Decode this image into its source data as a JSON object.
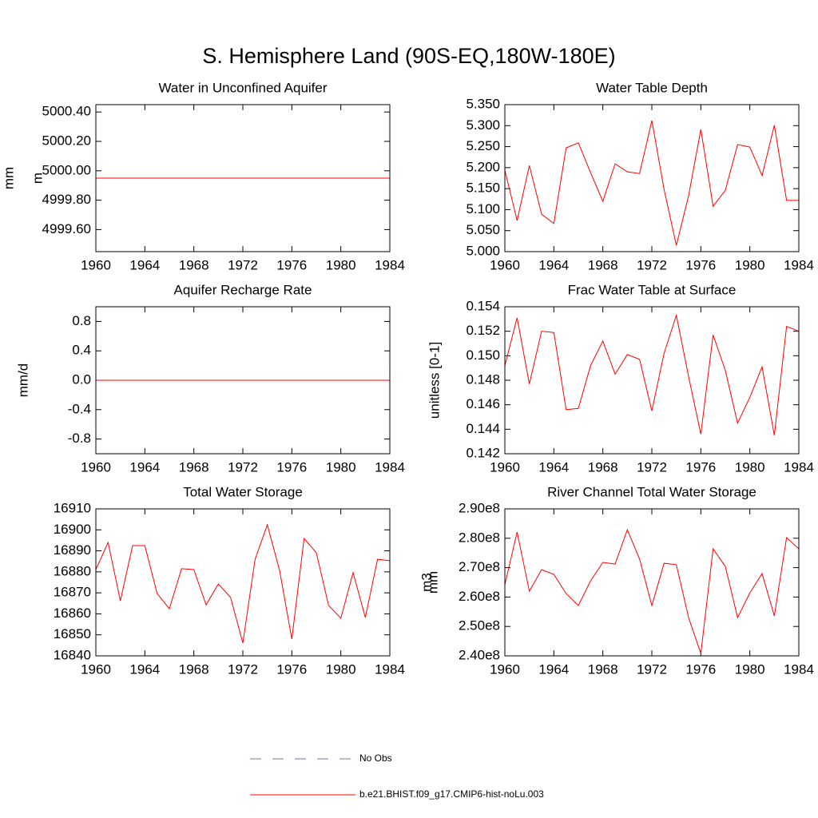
{
  "title": "S. Hemisphere Land (90S-EQ,180W-180E)",
  "legend": [
    {
      "name": "No Obs",
      "color": "#6b78b4",
      "dash": true
    },
    {
      "name": "b.e21.BHIST.f09_g17.CMIP6-hist-noLu.003",
      "color": "#ff0000",
      "dash": false
    }
  ],
  "chart_data": [
    {
      "type": "line",
      "title": "Water in Unconfined Aquifer",
      "ylabel": "mm",
      "color": "#ff0000",
      "x": [
        1960,
        1961,
        1962,
        1963,
        1964,
        1965,
        1966,
        1967,
        1968,
        1969,
        1970,
        1971,
        1972,
        1973,
        1974,
        1975,
        1976,
        1977,
        1978,
        1979,
        1980,
        1981,
        1982,
        1983,
        1984
      ],
      "values": [
        4999.95,
        4999.95,
        4999.95,
        4999.95,
        4999.95,
        4999.95,
        4999.95,
        4999.95,
        4999.95,
        4999.95,
        4999.95,
        4999.95,
        4999.95,
        4999.95,
        4999.95,
        4999.95,
        4999.95,
        4999.95,
        4999.95,
        4999.95,
        4999.95,
        4999.95,
        4999.95,
        4999.95,
        4999.95
      ],
      "xlim": [
        1960,
        1984
      ],
      "xticks": [
        1960,
        1964,
        1968,
        1972,
        1976,
        1980,
        1984
      ],
      "ylim": [
        4999.45,
        5000.45
      ],
      "yticks": [
        {
          "value": 4999.6,
          "label": "4999.60"
        },
        {
          "value": 4999.8,
          "label": "4999.80"
        },
        {
          "value": 5000,
          "label": "5000.00"
        },
        {
          "value": 5000.2,
          "label": "5000.20"
        },
        {
          "value": 5000.4,
          "label": "5000.40"
        }
      ]
    },
    {
      "type": "line",
      "title": "Water Table Depth",
      "ylabel": "m",
      "color": "#ff0000",
      "x": [
        1960,
        1961,
        1962,
        1963,
        1964,
        1965,
        1966,
        1967,
        1968,
        1969,
        1970,
        1971,
        1972,
        1973,
        1974,
        1975,
        1976,
        1977,
        1978,
        1979,
        1980,
        1981,
        1982,
        1983,
        1984
      ],
      "values": [
        5.194,
        5.074,
        5.205,
        5.089,
        5.067,
        5.247,
        5.259,
        5.188,
        5.12,
        5.209,
        5.19,
        5.186,
        5.312,
        5.148,
        5.015,
        5.133,
        5.291,
        5.108,
        5.146,
        5.255,
        5.249,
        5.181,
        5.301,
        5.122,
        5.122
      ],
      "xlim": [
        1960,
        1984
      ],
      "xticks": [
        1960,
        1964,
        1968,
        1972,
        1976,
        1980,
        1984
      ],
      "ylim": [
        5.0,
        5.35
      ],
      "yticks": [
        {
          "value": 5,
          "label": "5.000"
        },
        {
          "value": 5.05,
          "label": "5.050"
        },
        {
          "value": 5.1,
          "label": "5.100"
        },
        {
          "value": 5.15,
          "label": "5.150"
        },
        {
          "value": 5.2,
          "label": "5.200"
        },
        {
          "value": 5.25,
          "label": "5.250"
        },
        {
          "value": 5.3,
          "label": "5.300"
        },
        {
          "value": 5.35,
          "label": "5.350"
        }
      ]
    },
    {
      "type": "line",
      "title": "Aquifer Recharge Rate",
      "ylabel": "mm/d",
      "color": "#ff0000",
      "x": [
        1960,
        1961,
        1962,
        1963,
        1964,
        1965,
        1966,
        1967,
        1968,
        1969,
        1970,
        1971,
        1972,
        1973,
        1974,
        1975,
        1976,
        1977,
        1978,
        1979,
        1980,
        1981,
        1982,
        1983,
        1984
      ],
      "values": [
        0,
        0,
        0,
        0,
        0,
        0,
        0,
        0,
        0,
        0,
        0,
        0,
        0,
        0,
        0,
        0,
        0,
        0,
        0,
        0,
        0,
        0,
        0,
        0,
        0
      ],
      "xlim": [
        1960,
        1984
      ],
      "xticks": [
        1960,
        1964,
        1968,
        1972,
        1976,
        1980,
        1984
      ],
      "ylim": [
        -1.0,
        1.0
      ],
      "yticks": [
        -0.8,
        -0.4,
        {
          "value": 0,
          "label": "0.0"
        },
        0.4,
        0.8
      ]
    },
    {
      "type": "line",
      "title": "Frac Water Table at Surface",
      "ylabel": "unitless [0-1]",
      "color": "#ff0000",
      "x": [
        1960,
        1961,
        1962,
        1963,
        1964,
        1965,
        1966,
        1967,
        1968,
        1969,
        1970,
        1971,
        1972,
        1973,
        1974,
        1975,
        1976,
        1977,
        1978,
        1979,
        1980,
        1981,
        1982,
        1983,
        1984
      ],
      "values": [
        0.1492,
        0.1531,
        0.1477,
        0.152,
        0.1519,
        0.1456,
        0.1457,
        0.1492,
        0.1512,
        0.1485,
        0.1501,
        0.1497,
        0.1455,
        0.1502,
        0.1533,
        0.1483,
        0.1436,
        0.1517,
        0.1488,
        0.1445,
        0.1466,
        0.1491,
        0.1435,
        0.1524,
        0.152
      ],
      "xlim": [
        1960,
        1984
      ],
      "xticks": [
        1960,
        1964,
        1968,
        1972,
        1976,
        1980,
        1984
      ],
      "ylim": [
        0.142,
        0.154
      ],
      "yticks": [
        0.142,
        0.144,
        0.146,
        0.148,
        {
          "value": 0.15,
          "label": "0.150"
        },
        0.152,
        0.154
      ]
    },
    {
      "type": "line",
      "title": "Total Water Storage",
      "ylabel": "mm",
      "color": "#ff0000",
      "x": [
        1960,
        1961,
        1962,
        1963,
        1964,
        1965,
        1966,
        1967,
        1968,
        1969,
        1970,
        1971,
        1972,
        1973,
        1974,
        1975,
        1976,
        1977,
        1978,
        1979,
        1980,
        1981,
        1982,
        1983,
        1984
      ],
      "values": [
        16881.1,
        16894.0,
        16866.2,
        16892.5,
        16892.5,
        16869.7,
        16862.4,
        16881.5,
        16881.1,
        16864.3,
        16874.2,
        16867.8,
        16846.1,
        16886.0,
        16902.4,
        16880.7,
        16848.0,
        16895.9,
        16889.1,
        16864.0,
        16857.9,
        16879.6,
        16858.3,
        16886.0,
        16885.3
      ],
      "xlim": [
        1960,
        1984
      ],
      "xticks": [
        1960,
        1964,
        1968,
        1972,
        1976,
        1980,
        1984
      ],
      "ylim": [
        16840,
        16910
      ],
      "yticks": [
        16840,
        16850,
        16860,
        16870,
        16880,
        16890,
        16900,
        16910
      ]
    },
    {
      "type": "line",
      "title": "River Channel Total Water Storage",
      "ylabel": "m3",
      "color": "#ff0000",
      "x": [
        1960,
        1961,
        1962,
        1963,
        1964,
        1965,
        1966,
        1967,
        1968,
        1969,
        1970,
        1971,
        1972,
        1973,
        1974,
        1975,
        1976,
        1977,
        1978,
        1979,
        1980,
        1981,
        1982,
        1983,
        1984
      ],
      "values": [
        264200000,
        282100000,
        262000000,
        269300000,
        267700000,
        261200000,
        257100000,
        265500000,
        271800000,
        271200000,
        282900000,
        272900000,
        257100000,
        271500000,
        271000000,
        253000000,
        240800000,
        276400000,
        270400000,
        253000000,
        261400000,
        268000000,
        253600000,
        280200000,
        276400000
      ],
      "xlim": [
        1960,
        1984
      ],
      "xticks": [
        1960,
        1964,
        1968,
        1972,
        1976,
        1980,
        1984
      ],
      "ylim": [
        240000000,
        290000000
      ],
      "yticks": [
        {
          "value": 240000000,
          "label": "2.40e8"
        },
        {
          "value": 250000000,
          "label": "2.50e8"
        },
        {
          "value": 260000000,
          "label": "2.60e8"
        },
        {
          "value": 270000000,
          "label": "2.70e8"
        },
        {
          "value": 280000000,
          "label": "2.80e8"
        },
        {
          "value": 290000000,
          "label": "2.90e8"
        }
      ]
    }
  ]
}
